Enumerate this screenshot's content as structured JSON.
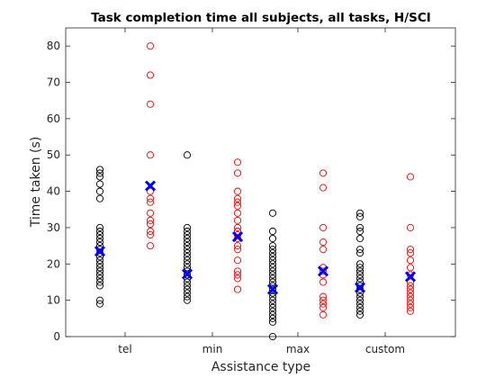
{
  "chart_data": {
    "type": "scatter",
    "title": "Task completion time all subjects, all tasks, H/SCI",
    "xlabel": "Assistance type",
    "ylabel": "Time taken (s)",
    "categories": [
      "tel",
      "min",
      "max",
      "custom"
    ],
    "ylim": [
      0,
      85
    ],
    "yticks": [
      0,
      10,
      20,
      30,
      40,
      50,
      60,
      70,
      80
    ],
    "grid": false,
    "series": [
      {
        "color": "#000000",
        "marker": "circle",
        "values": [
          [
            9,
            10,
            14,
            15,
            16,
            17,
            18,
            19,
            20,
            21,
            22,
            23,
            24,
            25,
            26,
            27,
            28,
            29,
            30,
            38,
            40,
            42,
            44,
            45,
            46
          ],
          [
            10,
            11,
            12,
            13,
            14,
            15,
            16,
            17,
            18,
            19,
            20,
            21,
            22,
            23,
            24,
            25,
            26,
            27,
            28,
            29,
            30,
            50
          ],
          [
            0,
            4,
            5,
            6,
            7,
            8,
            9,
            10,
            11,
            12,
            13,
            14,
            15,
            16,
            17,
            18,
            19,
            20,
            21,
            22,
            23,
            24,
            25,
            27,
            29,
            34
          ],
          [
            6,
            7,
            8,
            9,
            10,
            11,
            12,
            13,
            14,
            15,
            16,
            17,
            18,
            19,
            20,
            23,
            24,
            27,
            29,
            30,
            33,
            34
          ]
        ]
      },
      {
        "color": "#ff0000",
        "marker": "circle",
        "values": [
          [
            25,
            28,
            29,
            31,
            32,
            34,
            37,
            38,
            40,
            50,
            64,
            72,
            80
          ],
          [
            13,
            16,
            17,
            18,
            21,
            24,
            25,
            27,
            28,
            29,
            30,
            32,
            34,
            36,
            37,
            38,
            40,
            45,
            48
          ],
          [
            6,
            8,
            9,
            10,
            11,
            15,
            17,
            18,
            19,
            24,
            26,
            30,
            41,
            45
          ],
          [
            7,
            8,
            9,
            10,
            11,
            12,
            13,
            14,
            15,
            17,
            19,
            21,
            23,
            24,
            30,
            44
          ]
        ]
      }
    ],
    "means": {
      "color": "#0000ff",
      "marker": "x",
      "values": [
        [
          23.5,
          17.2,
          13.0,
          13.5
        ],
        [
          41.5,
          27.5,
          18.0,
          16.5
        ]
      ]
    }
  }
}
